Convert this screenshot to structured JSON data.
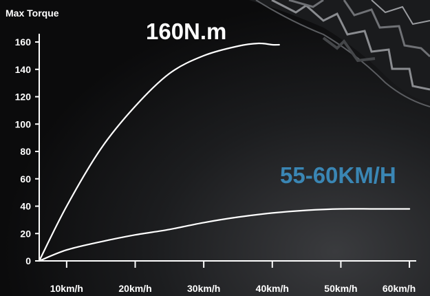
{
  "chart_data": {
    "type": "line",
    "ylabel": "Max Torque",
    "xlabel": "",
    "x_ticks": [
      "10km/h",
      "20km/h",
      "30km/h",
      "40km/h",
      "50km/h",
      "60km/h"
    ],
    "x_tick_values": [
      10,
      20,
      30,
      40,
      50,
      60
    ],
    "y_ticks": [
      0,
      20,
      40,
      60,
      80,
      100,
      120,
      140,
      160
    ],
    "xlim": [
      6,
      62
    ],
    "ylim": [
      0,
      160
    ],
    "grid": false,
    "series": [
      {
        "color": "#ffffff",
        "x": [
          6,
          10,
          15,
          20,
          25,
          30,
          35,
          38,
          40,
          41
        ],
        "y": [
          0,
          40,
          82,
          113,
          137,
          150,
          157,
          159,
          158,
          158
        ]
      },
      {
        "color": "#ffffff",
        "x": [
          6,
          10,
          15,
          20,
          25,
          30,
          35,
          40,
          45,
          50,
          55,
          60
        ],
        "y": [
          0,
          8,
          14,
          19,
          23,
          28,
          32,
          35,
          37,
          38,
          38,
          38
        ]
      }
    ],
    "annotations": [
      {
        "text": "160N.m",
        "color": "#ffffff"
      },
      {
        "text": "55-60KM/H",
        "color": "#3a86b4"
      }
    ]
  }
}
